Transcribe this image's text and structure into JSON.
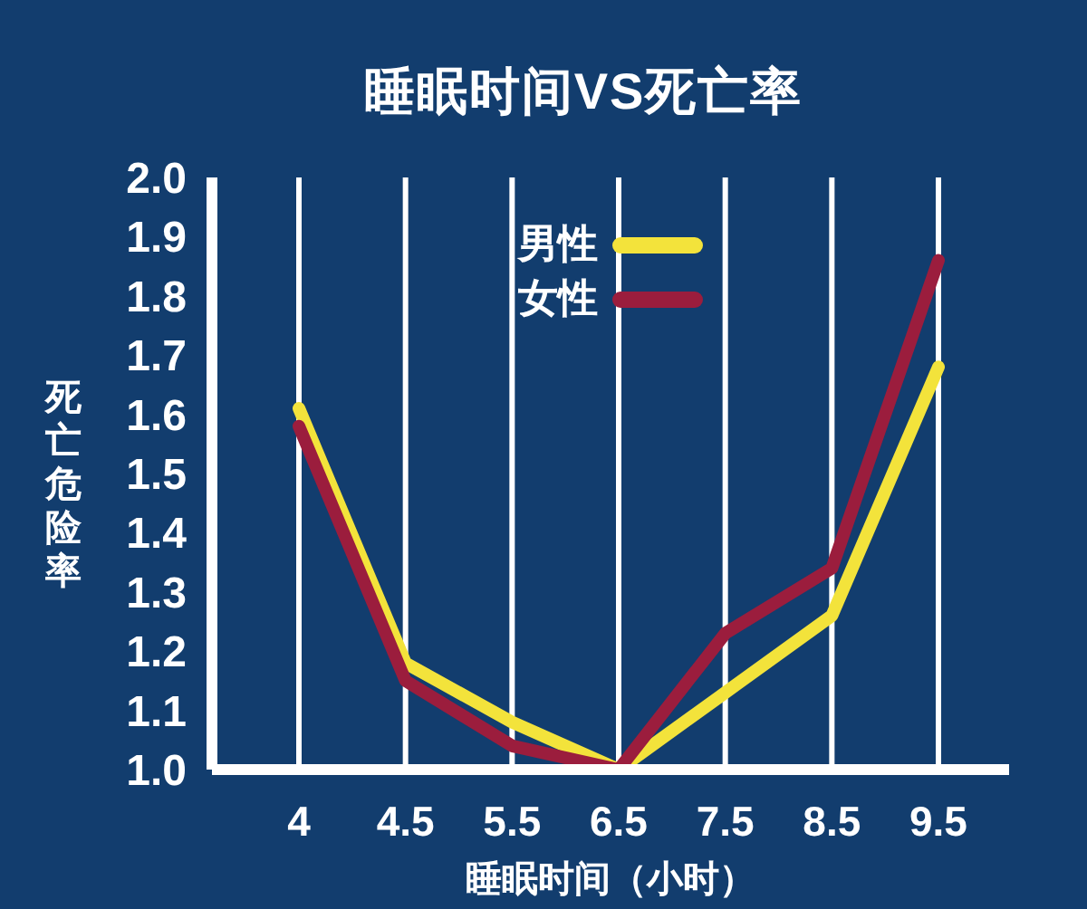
{
  "chart_data": {
    "type": "line",
    "title": "睡眠时间VS死亡率",
    "xlabel": "睡眠时间（小时）",
    "ylabel": "死亡危险率",
    "categories": [
      "4",
      "4.5",
      "5.5",
      "6.5",
      "7.5",
      "8.5",
      "9.5"
    ],
    "series": [
      {
        "name": "男性",
        "color": "#f3e33b",
        "values": [
          1.61,
          1.18,
          1.08,
          1.0,
          1.13,
          1.26,
          1.68
        ]
      },
      {
        "name": "女性",
        "color": "#9b1d3d",
        "values": [
          1.58,
          1.15,
          1.04,
          1.0,
          1.23,
          1.34,
          1.86
        ]
      }
    ],
    "ylim": [
      1.0,
      2.0
    ],
    "yticks": [
      {
        "value": 1.0,
        "label": "1.0"
      },
      1.1,
      1.2,
      1.3,
      1.4,
      1.5,
      1.6,
      1.7,
      1.8,
      1.9,
      {
        "value": 2.0,
        "label": "2.0"
      }
    ],
    "grid": "x",
    "legend": "top"
  }
}
